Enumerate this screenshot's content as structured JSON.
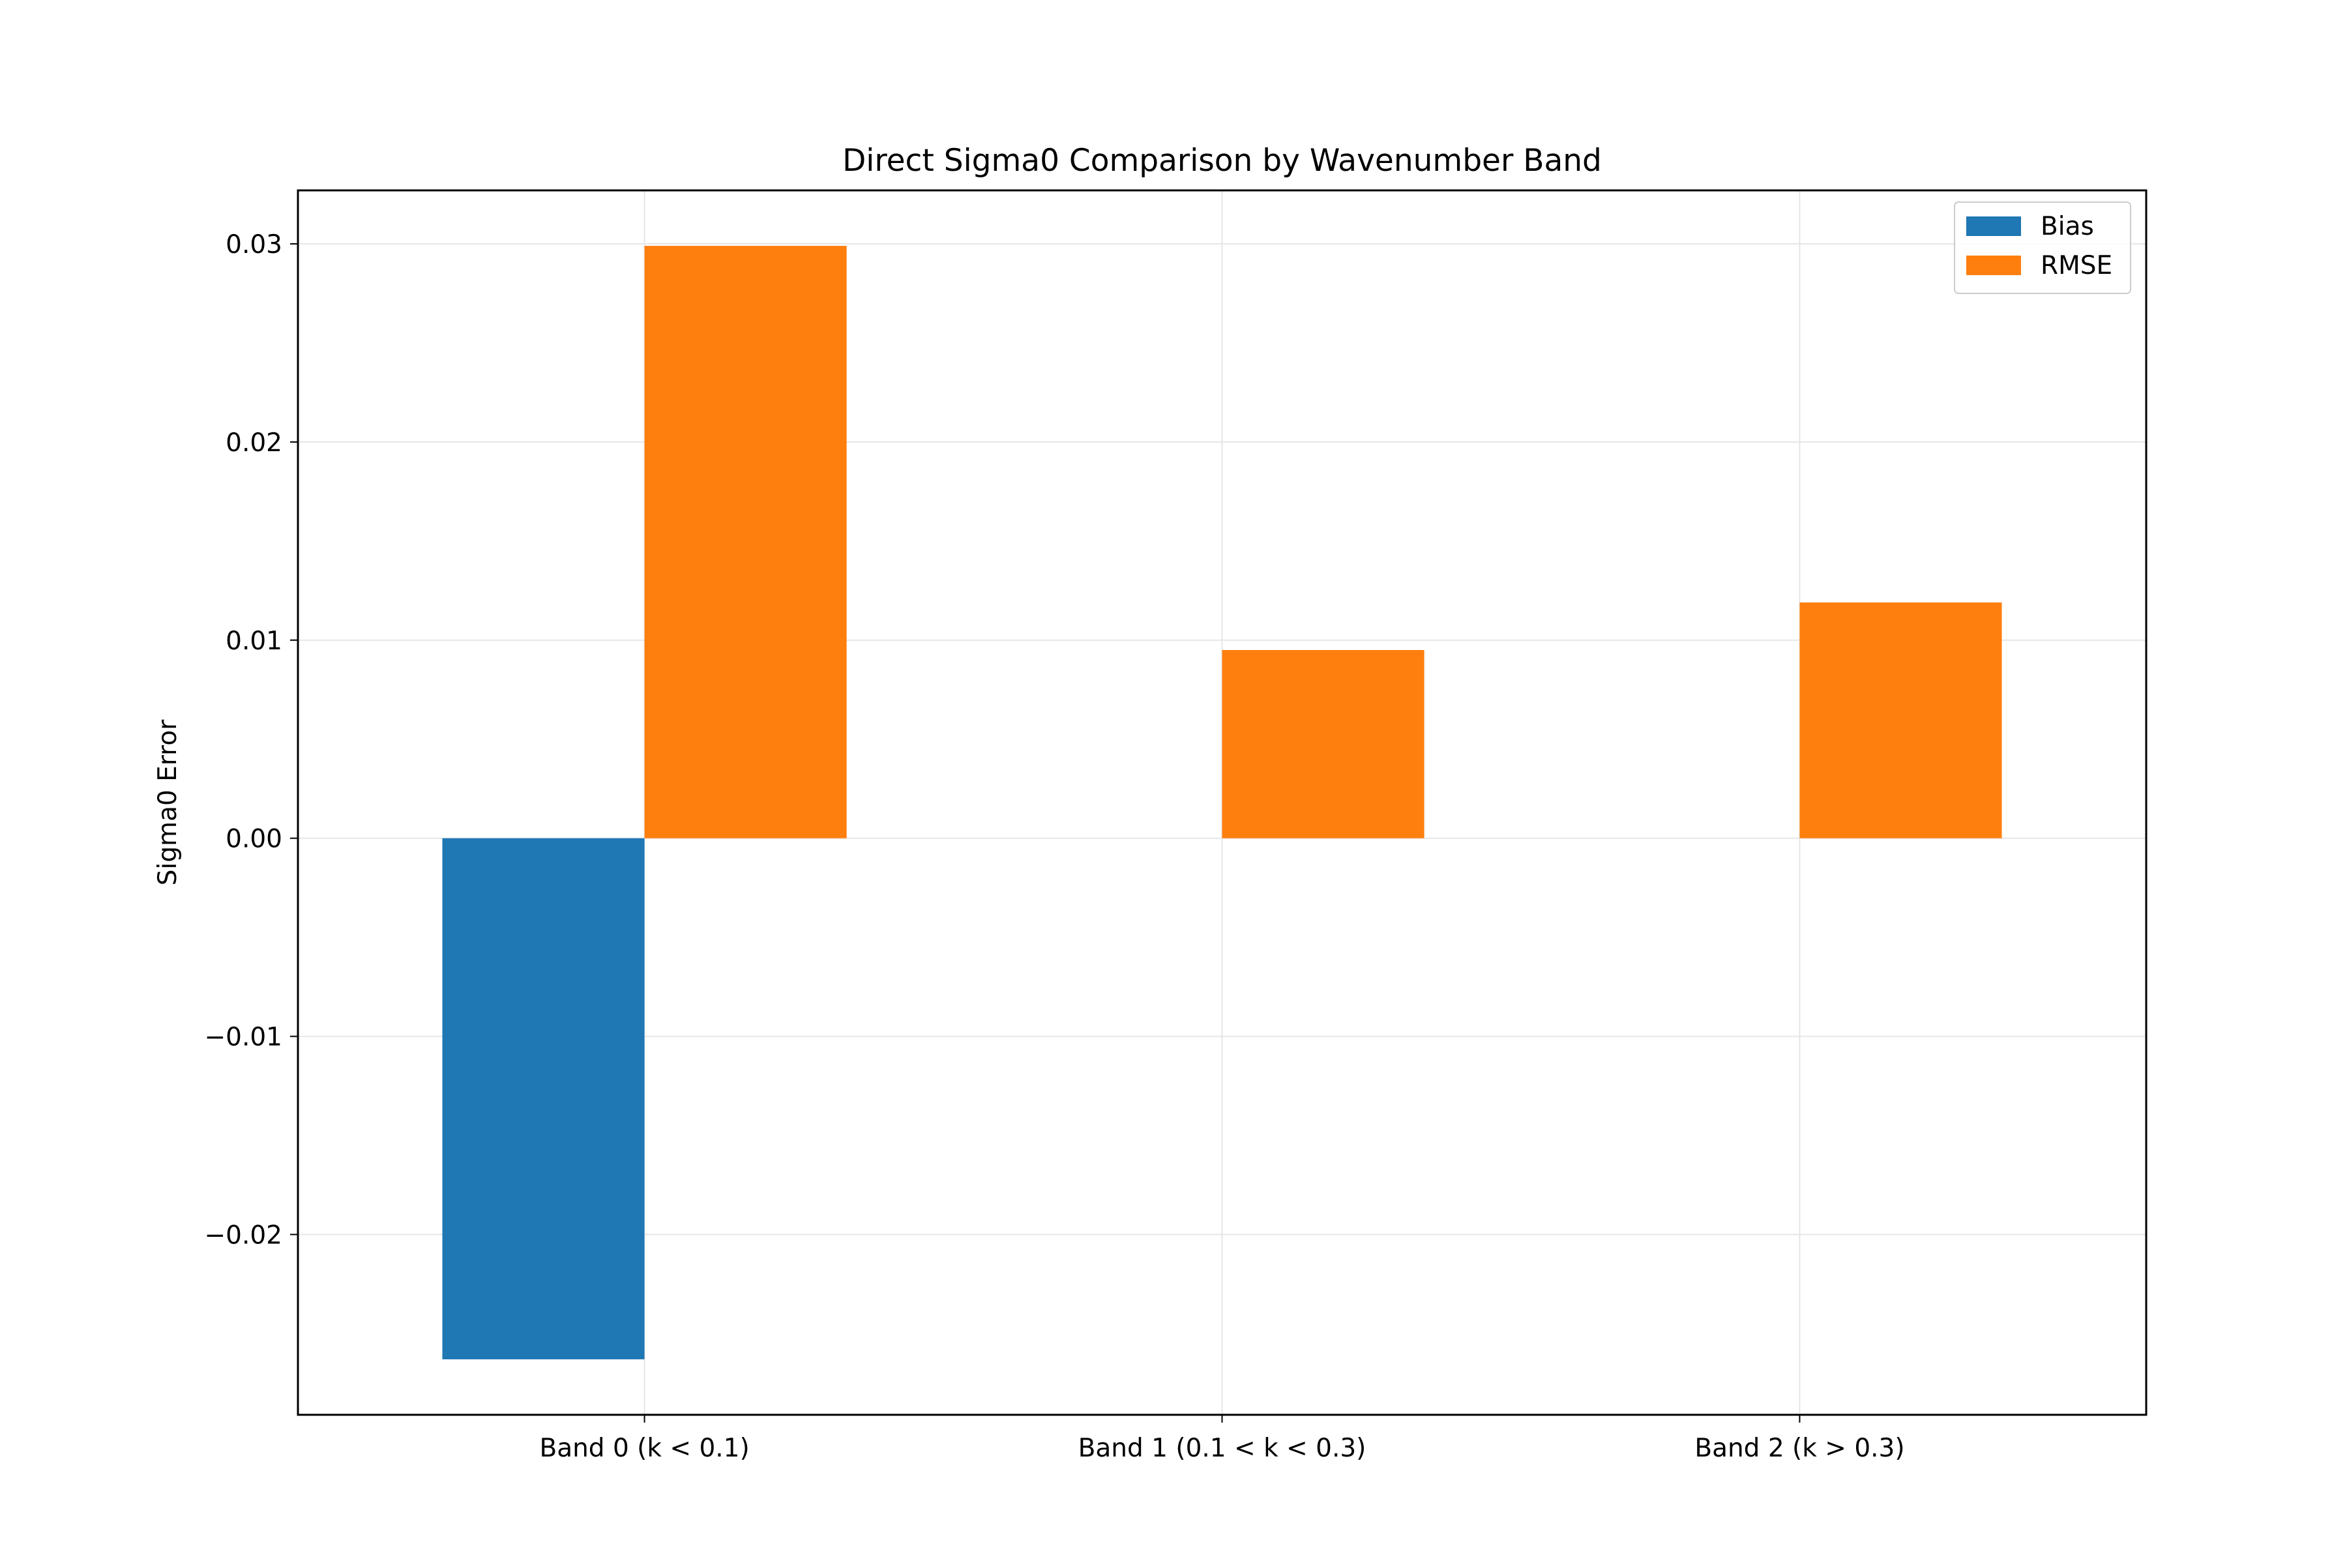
{
  "chart_data": {
    "type": "bar",
    "title": "Direct Sigma0 Comparison by Wavenumber Band",
    "xlabel": "",
    "ylabel": "Sigma0 Error",
    "categories": [
      "Band 0 (k < 0.1)",
      "Band 1 (0.1 < k < 0.3)",
      "Band 2 (k > 0.3)"
    ],
    "series": [
      {
        "name": "Bias",
        "values": [
          -0.0263,
          0.0,
          0.0
        ]
      },
      {
        "name": "RMSE",
        "values": [
          0.0299,
          0.0095,
          0.0119
        ]
      }
    ],
    "ylim": [
      -0.0291,
      0.0327
    ],
    "yticks": [
      -0.02,
      -0.01,
      0.0,
      0.01,
      0.02,
      0.03
    ],
    "ytick_labels": [
      "−0.02",
      "−0.01",
      "0.00",
      "0.01",
      "0.02",
      "0.03"
    ],
    "grid": true,
    "legend": "upper right"
  },
  "colors": {
    "Bias": "#1f77b4",
    "RMSE": "#ff7f0e",
    "grid": "#e6e6e6",
    "axes": "#000000"
  }
}
